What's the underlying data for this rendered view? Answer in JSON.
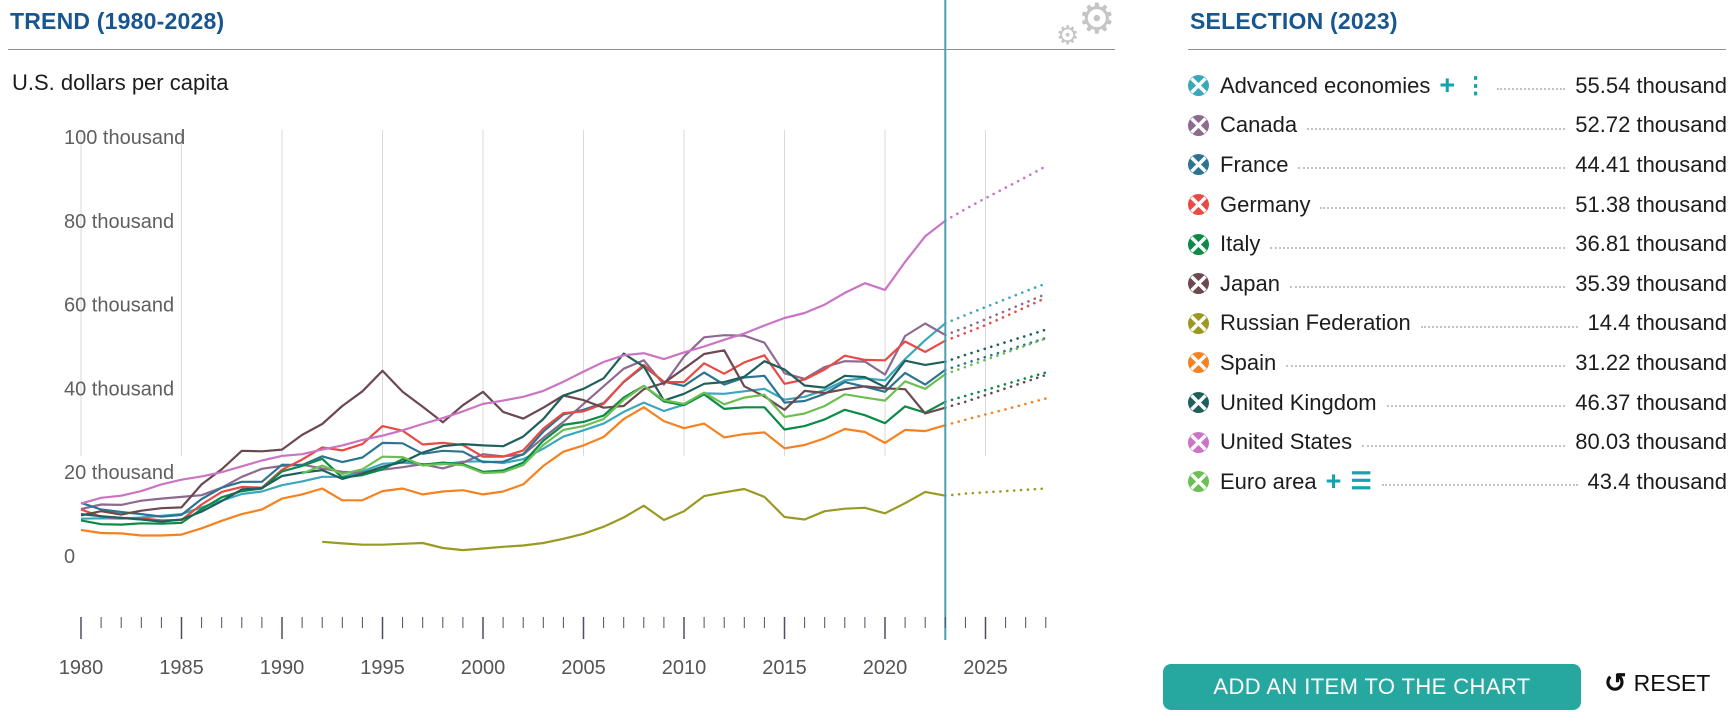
{
  "header": {
    "trend_title": "TREND (1980-2028)",
    "selection_title": "SELECTION (2023)"
  },
  "icons": {
    "settings": "gear-icon",
    "reset": "reset-circular-arrow-icon",
    "legend_remove": "circle-x-remove-icon",
    "expand_plus": "plus-icon",
    "expand_dots": "vertical-dots-icon",
    "expand_list": "list-icon"
  },
  "footer": {
    "add_button_label": "ADD AN ITEM TO THE CHART",
    "reset_label": "RESET"
  },
  "legend": {
    "items": [
      {
        "label": "Advanced economies",
        "value": "55.54 thousand",
        "color": "#3ba7bd",
        "controls": [
          "plus",
          "dots"
        ]
      },
      {
        "label": "Canada",
        "value": "52.72 thousand",
        "color": "#8e6a90",
        "controls": []
      },
      {
        "label": "France",
        "value": "44.41 thousand",
        "color": "#2d7492",
        "controls": []
      },
      {
        "label": "Germany",
        "value": "51.38 thousand",
        "color": "#e84a44",
        "controls": []
      },
      {
        "label": "Italy",
        "value": "36.81 thousand",
        "color": "#0c8a47",
        "controls": []
      },
      {
        "label": "Japan",
        "value": "35.39 thousand",
        "color": "#6c4850",
        "controls": []
      },
      {
        "label": "Russian Federation",
        "value": "14.4 thousand",
        "color": "#9a9a22",
        "controls": []
      },
      {
        "label": "Spain",
        "value": "31.22 thousand",
        "color": "#f58220",
        "controls": []
      },
      {
        "label": "United Kingdom",
        "value": "46.37 thousand",
        "color": "#20605c",
        "controls": []
      },
      {
        "label": "United States",
        "value": "80.03 thousand",
        "color": "#cb74c4",
        "controls": []
      },
      {
        "label": "Euro area",
        "value": "43.4 thousand",
        "color": "#6cbf53",
        "controls": [
          "plus",
          "list"
        ]
      }
    ]
  },
  "chart_data": {
    "type": "line",
    "title": "TREND (1980-2028)",
    "ylabel": "U.S. dollars per capita",
    "x_range": [
      1980,
      2028
    ],
    "ylim": [
      0,
      100
    ],
    "marker_year": 2023,
    "marker_color": "#4e9fae",
    "grid": "vertical-only",
    "x_gridline_years": [
      1980,
      1985,
      1990,
      1995,
      2000,
      2005,
      2010,
      2015,
      2020,
      2025
    ],
    "y_ticks": [
      {
        "v": 100,
        "label": "100 thousand"
      },
      {
        "v": 80,
        "label": "80 thousand"
      },
      {
        "v": 60,
        "label": "60 thousand"
      },
      {
        "v": 40,
        "label": "40 thousand"
      },
      {
        "v": 20,
        "label": "20 thousand"
      },
      {
        "v": 0,
        "label": "0"
      }
    ],
    "years": [
      1980,
      1981,
      1982,
      1983,
      1984,
      1985,
      1986,
      1987,
      1988,
      1989,
      1990,
      1991,
      1992,
      1993,
      1994,
      1995,
      1996,
      1997,
      1998,
      1999,
      2000,
      2001,
      2002,
      2003,
      2004,
      2005,
      2006,
      2007,
      2008,
      2009,
      2010,
      2011,
      2012,
      2013,
      2014,
      2015,
      2016,
      2017,
      2018,
      2019,
      2020,
      2021,
      2022,
      2023,
      2024,
      2025,
      2026,
      2027,
      2028
    ],
    "projection_from_year": 2023,
    "series": [
      {
        "name": "Advanced economies",
        "color": "#3ba7bd",
        "values": [
          8.9,
          9.0,
          8.9,
          9.2,
          9.6,
          10.0,
          11.6,
          13.2,
          14.8,
          15.4,
          16.9,
          17.8,
          18.9,
          18.9,
          20.2,
          22.0,
          22.3,
          21.9,
          21.9,
          22.5,
          22.6,
          22.2,
          23.1,
          25.6,
          28.5,
          30.0,
          31.6,
          34.4,
          36.6,
          34.6,
          36.1,
          38.8,
          38.7,
          39.3,
          39.9,
          37.3,
          38.0,
          39.6,
          41.9,
          42.4,
          41.9,
          47.0,
          51.5,
          55.54,
          57.5,
          59.4,
          61.3,
          63.2,
          65.0
        ]
      },
      {
        "name": "Canada",
        "color": "#8e6a90",
        "values": [
          11.2,
          12.3,
          12.2,
          13.2,
          13.7,
          14.1,
          14.5,
          16.3,
          18.9,
          20.8,
          21.5,
          21.8,
          20.9,
          20.1,
          19.9,
          20.6,
          21.2,
          21.9,
          20.9,
          22.3,
          24.3,
          23.8,
          24.2,
          28.2,
          32.0,
          36.3,
          40.5,
          44.7,
          46.7,
          40.9,
          47.6,
          52.2,
          52.7,
          52.6,
          50.9,
          43.6,
          42.3,
          45.1,
          46.5,
          46.4,
          43.3,
          52.5,
          55.5,
          52.72,
          54.5,
          56.5,
          58.5,
          60.5,
          62.5
        ]
      },
      {
        "name": "France",
        "color": "#2d7492",
        "values": [
          12.7,
          11.1,
          10.5,
          10.0,
          9.4,
          9.8,
          13.6,
          16.3,
          17.7,
          17.7,
          21.8,
          21.7,
          23.8,
          22.4,
          23.5,
          27.0,
          26.9,
          24.4,
          25.1,
          24.9,
          22.4,
          22.5,
          24.3,
          29.7,
          33.8,
          34.9,
          36.5,
          41.5,
          45.3,
          41.6,
          40.6,
          43.8,
          40.9,
          42.6,
          43.0,
          36.6,
          37.0,
          38.7,
          41.5,
          40.4,
          39.2,
          43.7,
          40.9,
          44.41,
          46.0,
          47.5,
          49.0,
          50.5,
          52.0
        ]
      },
      {
        "name": "Germany",
        "color": "#e84a44",
        "values": [
          11.1,
          9.4,
          9.1,
          9.0,
          8.5,
          8.6,
          12.3,
          15.3,
          16.5,
          16.3,
          20.6,
          23.0,
          25.9,
          25.2,
          26.7,
          31.0,
          29.9,
          26.6,
          27.0,
          26.5,
          23.7,
          23.7,
          25.2,
          30.4,
          34.1,
          34.5,
          36.3,
          41.6,
          45.6,
          41.5,
          41.5,
          46.0,
          43.5,
          46.2,
          47.9,
          41.1,
          42.1,
          44.5,
          47.8,
          46.8,
          46.7,
          51.2,
          48.7,
          51.38,
          53.2,
          55.1,
          57.2,
          59.4,
          61.6
        ]
      },
      {
        "name": "Italy",
        "color": "#0c8a47",
        "values": [
          8.5,
          7.6,
          7.5,
          7.8,
          7.7,
          7.9,
          11.2,
          14.0,
          15.5,
          16.1,
          20.2,
          21.5,
          23.2,
          18.7,
          19.3,
          20.7,
          23.1,
          21.8,
          22.3,
          21.9,
          20.1,
          20.4,
          22.3,
          27.5,
          31.3,
          32.0,
          33.5,
          37.8,
          40.6,
          36.9,
          36.0,
          38.6,
          35.1,
          35.5,
          35.5,
          30.2,
          31.0,
          32.6,
          34.9,
          33.6,
          31.7,
          35.7,
          34.2,
          36.81,
          38.2,
          39.6,
          41.0,
          42.4,
          43.8
        ]
      },
      {
        "name": "Japan",
        "color": "#6c4850",
        "values": [
          9.7,
          10.7,
          9.9,
          10.8,
          11.4,
          11.6,
          17.1,
          20.7,
          25.1,
          25.0,
          25.4,
          28.9,
          31.5,
          35.8,
          39.3,
          44.2,
          39.2,
          35.6,
          31.9,
          36.0,
          39.2,
          34.4,
          32.8,
          35.4,
          38.3,
          37.2,
          35.4,
          35.8,
          39.8,
          41.3,
          44.7,
          48.2,
          49.1,
          40.5,
          38.1,
          34.9,
          39.4,
          38.9,
          39.8,
          40.5,
          40.0,
          39.8,
          34.0,
          35.39,
          36.8,
          38.4,
          40.0,
          41.6,
          43.2
        ]
      },
      {
        "name": "Russian Federation",
        "color": "#9a9a22",
        "values": [
          null,
          null,
          null,
          null,
          null,
          null,
          null,
          null,
          null,
          null,
          null,
          null,
          3.4,
          3.0,
          2.7,
          2.7,
          2.9,
          3.1,
          1.9,
          1.4,
          1.8,
          2.2,
          2.5,
          3.1,
          4.1,
          5.3,
          7.0,
          9.2,
          12.0,
          8.6,
          10.7,
          14.3,
          15.2,
          16.0,
          14.1,
          9.3,
          8.7,
          10.7,
          11.3,
          11.5,
          10.2,
          12.6,
          15.3,
          14.4,
          14.9,
          15.2,
          15.5,
          15.8,
          16.1
        ]
      },
      {
        "name": "Spain",
        "color": "#f58220",
        "values": [
          6.2,
          5.5,
          5.4,
          4.9,
          4.9,
          5.1,
          6.6,
          8.4,
          10.0,
          11.1,
          13.7,
          14.7,
          16.1,
          13.3,
          13.3,
          15.5,
          16.1,
          14.7,
          15.4,
          15.7,
          14.7,
          15.4,
          17.1,
          21.5,
          24.9,
          26.4,
          28.4,
          32.7,
          35.5,
          32.2,
          30.5,
          31.6,
          28.3,
          29.1,
          29.5,
          25.7,
          26.5,
          28.1,
          30.3,
          29.6,
          27.0,
          30.1,
          29.8,
          31.22,
          32.5,
          33.8,
          35.0,
          36.3,
          37.6
        ]
      },
      {
        "name": "United Kingdom",
        "color": "#20605c",
        "values": [
          10.0,
          9.5,
          9.1,
          8.7,
          8.2,
          8.7,
          10.6,
          13.1,
          15.9,
          16.2,
          19.1,
          19.9,
          20.5,
          18.4,
          19.7,
          21.3,
          22.4,
          24.7,
          26.2,
          26.7,
          26.4,
          26.2,
          28.5,
          32.7,
          38.3,
          39.9,
          42.4,
          48.3,
          45.2,
          37.1,
          38.7,
          41.1,
          41.5,
          42.8,
          46.5,
          44.5,
          40.7,
          40.2,
          43.0,
          42.7,
          40.3,
          46.6,
          45.6,
          46.37,
          48.0,
          49.5,
          51.0,
          52.5,
          54.0
        ]
      },
      {
        "name": "United States",
        "color": "#cb74c4",
        "values": [
          12.5,
          13.9,
          14.4,
          15.5,
          17.1,
          18.2,
          19.0,
          20.0,
          21.4,
          22.8,
          23.9,
          24.3,
          25.4,
          26.4,
          27.7,
          28.7,
          30.0,
          31.5,
          32.9,
          34.5,
          36.3,
          37.1,
          38.0,
          39.4,
          41.6,
          44.0,
          46.3,
          47.9,
          48.4,
          47.0,
          48.6,
          50.0,
          51.6,
          53.1,
          55.0,
          56.8,
          58.0,
          60.0,
          62.8,
          65.1,
          63.5,
          70.2,
          76.3,
          80.03,
          82.8,
          85.4,
          87.9,
          90.4,
          93.0
        ]
      },
      {
        "name": "Euro area",
        "color": "#6cbf53",
        "values": [
          null,
          null,
          null,
          null,
          null,
          null,
          null,
          null,
          null,
          null,
          null,
          19.7,
          21.6,
          19.6,
          20.7,
          23.7,
          23.6,
          21.6,
          22.0,
          21.7,
          19.8,
          20.0,
          21.7,
          26.5,
          30.1,
          31.0,
          32.7,
          37.3,
          40.6,
          37.2,
          36.3,
          39.0,
          36.2,
          37.8,
          38.5,
          33.2,
          34.0,
          35.8,
          38.6,
          37.8,
          37.1,
          41.7,
          39.9,
          43.4,
          45.1,
          46.8,
          48.5,
          50.2,
          51.9
        ]
      }
    ]
  }
}
